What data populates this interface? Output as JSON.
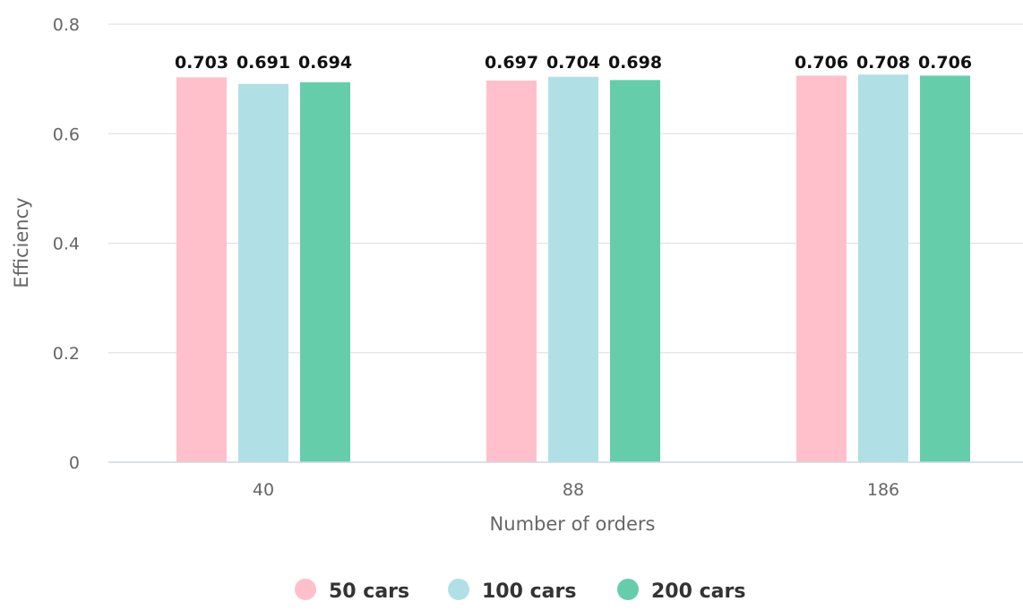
{
  "chart_data": {
    "type": "bar",
    "categories": [
      "40",
      "88",
      "186"
    ],
    "series": [
      {
        "name": "50 cars",
        "values": [
          0.703,
          0.697,
          0.706
        ],
        "color": "#ffc0cb"
      },
      {
        "name": "100 cars",
        "values": [
          0.691,
          0.704,
          0.708
        ],
        "color": "#b0e0e6"
      },
      {
        "name": "200 cars",
        "values": [
          0.694,
          0.698,
          0.706
        ],
        "color": "#66cdaa"
      }
    ],
    "xlabel": "Number of orders",
    "ylabel": "Efficiency",
    "ylim": [
      0,
      0.8
    ],
    "yticks": [
      0,
      0.2,
      0.4,
      0.6,
      0.8
    ],
    "ytick_labels": [
      "0",
      "0.2",
      "0.4",
      "0.6",
      "0.8"
    ],
    "data_labels": true,
    "grid": true,
    "legend": "bottom-center"
  }
}
